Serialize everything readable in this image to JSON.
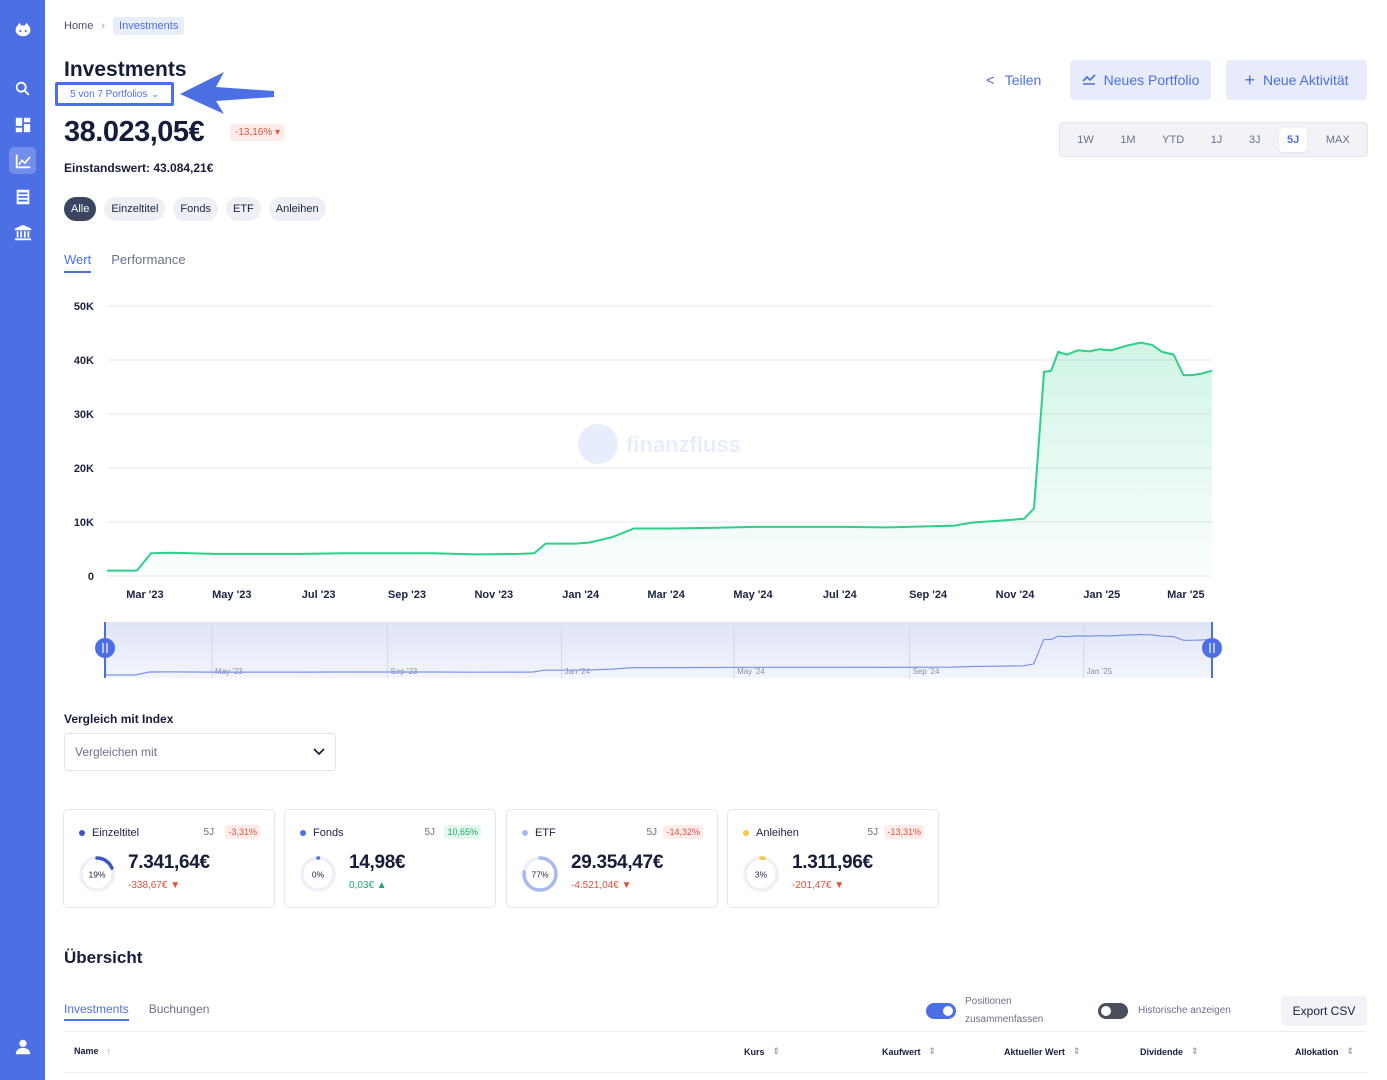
{
  "breadcrumb": {
    "home": "Home",
    "current": "Investments"
  },
  "header": {
    "title": "Investments",
    "portfolio_select": "5 von 7 Portfolios",
    "total_value": "38.023,05€",
    "total_change": "-13,16%",
    "einstandswert": "Einstandswert: 43.084,21€",
    "share_label": "Teilen",
    "new_portfolio_label": "Neues Portfolio",
    "new_activity_label": "Neue Aktivität"
  },
  "range": {
    "options": [
      "1W",
      "1M",
      "YTD",
      "1J",
      "3J",
      "5J",
      "MAX"
    ],
    "selected": "5J"
  },
  "filters": {
    "options": [
      "Alle",
      "Einzeltitel",
      "Fonds",
      "ETF",
      "Anleihen"
    ],
    "selected": "Alle"
  },
  "chart_tabs": {
    "wert": "Wert",
    "performance": "Performance",
    "selected": "Wert"
  },
  "watermark": "finanzfluss",
  "chart_data": {
    "type": "area",
    "title": "",
    "xlabel": "",
    "ylabel": "",
    "x_tick_labels": [
      "Mar '23",
      "May '23",
      "Jul '23",
      "Sep '23",
      "Nov '23",
      "Jan '24",
      "Mar '24",
      "May '24",
      "Jul '24",
      "Sep '24",
      "Nov '24",
      "Jan '25",
      "Mar '25"
    ],
    "y_tick_labels": [
      "0",
      "10K",
      "20K",
      "30K",
      "40K",
      "50K"
    ],
    "ylim": [
      0,
      50000
    ],
    "grid": true,
    "color": "#2ecf8a",
    "x": [
      "2023-02-15",
      "2023-03-08",
      "2023-03-18",
      "2023-04-01",
      "2023-05-01",
      "2023-06-01",
      "2023-07-01",
      "2023-08-01",
      "2023-09-01",
      "2023-10-01",
      "2023-11-01",
      "2023-12-01",
      "2023-12-12",
      "2023-12-20",
      "2024-01-10",
      "2024-01-20",
      "2024-02-05",
      "2024-02-20",
      "2024-03-15",
      "2024-04-15",
      "2024-05-15",
      "2024-06-15",
      "2024-07-15",
      "2024-08-15",
      "2024-09-15",
      "2024-10-01",
      "2024-10-15",
      "2024-11-01",
      "2024-11-20",
      "2024-11-27",
      "2024-12-04",
      "2024-12-09",
      "2024-12-14",
      "2024-12-20",
      "2024-12-28",
      "2025-01-05",
      "2025-01-12",
      "2025-01-20",
      "2025-02-01",
      "2025-02-10",
      "2025-02-18",
      "2025-02-25",
      "2025-03-05",
      "2025-03-12",
      "2025-03-18",
      "2025-03-25",
      "2025-04-01"
    ],
    "values": [
      1000,
      1000,
      4200,
      4300,
      4100,
      4100,
      4100,
      4200,
      4200,
      4200,
      4000,
      4100,
      4200,
      6000,
      6000,
      6200,
      7200,
      8800,
      8800,
      8900,
      9100,
      9100,
      9100,
      9000,
      9200,
      9300,
      9900,
      10200,
      10600,
      12500,
      37800,
      38000,
      41500,
      41000,
      41800,
      41600,
      42000,
      41800,
      42700,
      43200,
      42800,
      41500,
      41000,
      37200,
      37200,
      37500,
      38023
    ]
  },
  "navigator": {
    "tick_labels": [
      "May '23",
      "Sep '23",
      "Jan '24",
      "May '24",
      "Sep '24",
      "Jan '25"
    ]
  },
  "compare": {
    "label": "Vergleich mit Index",
    "placeholder": "Vergleichen mit"
  },
  "categories": [
    {
      "name": "Einzeltitel",
      "period": "5J",
      "pct": "-3,31%",
      "pct_sign": "neg",
      "value": "7.341,64€",
      "change": "-338,67€",
      "change_sign": "neg",
      "share": "19%",
      "share_fraction": 0.19,
      "color": "#3c54c8"
    },
    {
      "name": "Fonds",
      "period": "5J",
      "pct": "10,65%",
      "pct_sign": "pos",
      "value": "14,98€",
      "change": "0,03€",
      "change_sign": "pos",
      "share": "0%",
      "share_fraction": 0.0,
      "color": "#4c6fe4"
    },
    {
      "name": "ETF",
      "period": "5J",
      "pct": "-14,32%",
      "pct_sign": "neg",
      "value": "29.354,47€",
      "change": "-4.521,04€",
      "change_sign": "neg",
      "share": "77%",
      "share_fraction": 0.77,
      "color": "#a9b9ee"
    },
    {
      "name": "Anleihen",
      "period": "5J",
      "pct": "-13,31%",
      "pct_sign": "neg",
      "value": "1.311,96€",
      "change": "-201,47€",
      "change_sign": "neg",
      "share": "3%",
      "share_fraction": 0.03,
      "color": "#f5c842"
    }
  ],
  "overview": {
    "title": "Übersicht",
    "tabs": [
      "Investments",
      "Buchungen"
    ],
    "toggle_merge_line1": "Positionen",
    "toggle_merge_line2": "zusammenfassen",
    "toggle_merge_on": true,
    "toggle_history": "Historische anzeigen",
    "toggle_history_on": false,
    "export_label": "Export CSV",
    "columns": [
      "Name",
      "Kurs",
      "Kaufwert",
      "Aktueller Wert",
      "Dividende",
      "Allokation"
    ]
  },
  "colors": {
    "accent": "#4c6fe4",
    "positive": "#1aa96a",
    "negative": "#e2513d",
    "line": "#2ecf8a"
  }
}
